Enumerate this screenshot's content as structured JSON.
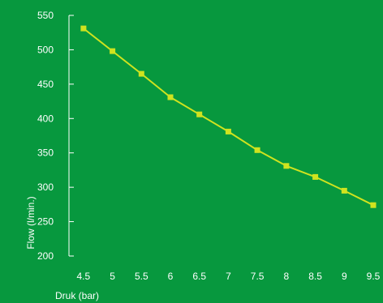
{
  "colors": {
    "background": "#07983e",
    "axis": "#ffffff",
    "text": "#ffffff",
    "series": "#cfe31f"
  },
  "chart_data": {
    "type": "line",
    "title": "",
    "xlabel": "Druk (bar)",
    "ylabel": "Flow (l/min.)",
    "x": [
      4.5,
      5,
      5.5,
      6,
      6.5,
      7,
      7.5,
      8,
      8.5,
      9,
      9.5
    ],
    "x_tick_labels": [
      "4.5",
      "5",
      "5.5",
      "6",
      "6.5",
      "7",
      "7.5",
      "8",
      "8.5",
      "9",
      "9.5"
    ],
    "y_ticks": [
      200,
      250,
      300,
      350,
      400,
      450,
      500,
      550
    ],
    "y_tick_labels": [
      "200",
      "250",
      "300",
      "350",
      "400",
      "450",
      "500",
      "550"
    ],
    "xlim": [
      4.25,
      9.5
    ],
    "ylim": [
      200,
      550
    ],
    "grid": false,
    "legend": "none",
    "marker": "square",
    "series": [
      {
        "values": [
          531,
          498,
          465,
          431,
          406,
          381,
          354,
          331,
          315,
          295,
          274
        ]
      }
    ]
  }
}
